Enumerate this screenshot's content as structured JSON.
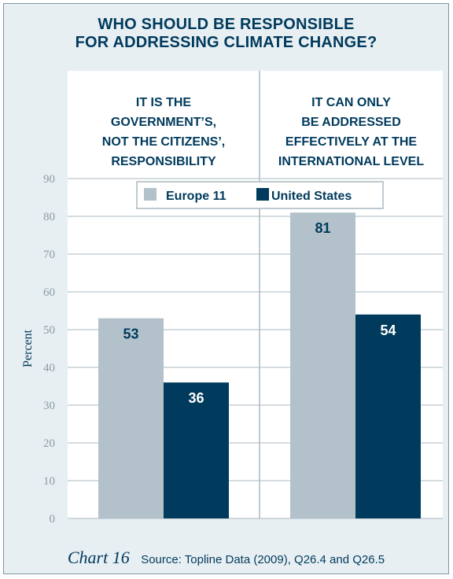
{
  "chart_data": {
    "type": "bar",
    "title": "WHO SHOULD BE RESPONSIBLE\nFOR ADDRESSING CLIMATE CHANGE?",
    "categories": [
      "IT IS THE\nGOVERNMENT’S,\nNOT THE CITIZENS’,\nRESPONSIBILITY",
      "IT CAN ONLY\nBE ADDRESSED\nEFFECTIVELY AT THE\nINTERNATIONAL LEVEL"
    ],
    "series": [
      {
        "name": "Europe 11",
        "values": [
          53,
          81
        ],
        "color": "#b3c2ca"
      },
      {
        "name": "United States",
        "values": [
          36,
          54
        ],
        "color": "#003a5c"
      }
    ],
    "ylabel": "Percent",
    "ylim": [
      0,
      90
    ],
    "yticks": [
      0,
      10,
      20,
      30,
      40,
      50,
      60,
      70,
      80,
      90
    ],
    "grid": true,
    "legend": "top-center"
  },
  "footer": {
    "chart_number": "Chart 16",
    "source": "Source: Topline Data (2009), Q26.4 and Q26.5"
  },
  "colors": {
    "frame_background": "#e8eff3",
    "plot_background": "#ffffff",
    "gridline": "#aab9c1",
    "text_navy": "#003a5c",
    "tick_text": "#8a9ba4"
  }
}
